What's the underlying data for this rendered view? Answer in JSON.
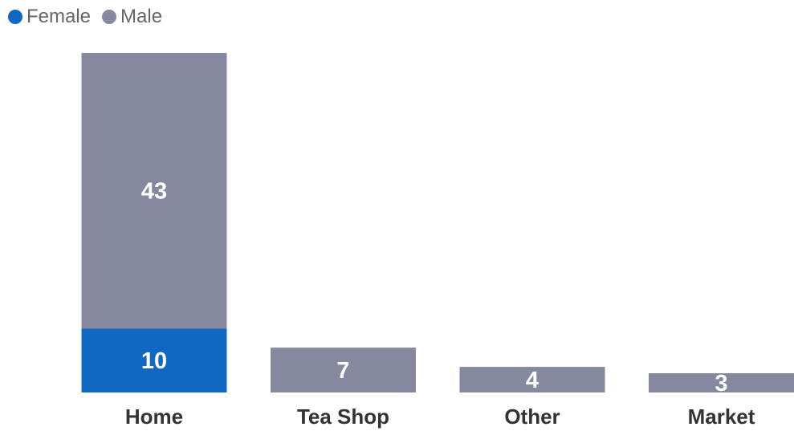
{
  "legend": {
    "items": [
      {
        "label": "Female",
        "color": "#1068C3"
      },
      {
        "label": "Male",
        "color": "#85889E"
      }
    ]
  },
  "chart_data": {
    "type": "bar",
    "stacked": true,
    "categories": [
      "Home",
      "Tea Shop",
      "Other",
      "Market"
    ],
    "series": [
      {
        "name": "Female",
        "color": "#1068C3",
        "values": [
          10,
          0,
          0,
          0
        ]
      },
      {
        "name": "Male",
        "color": "#85889E",
        "values": [
          43,
          7,
          4,
          3
        ]
      }
    ],
    "title": "",
    "xlabel": "",
    "ylabel": "",
    "ylim": [
      0,
      53
    ],
    "grid": false,
    "legend_position": "top-left",
    "data_label_color": "#ffffff",
    "axis_label_color": "#333333"
  }
}
